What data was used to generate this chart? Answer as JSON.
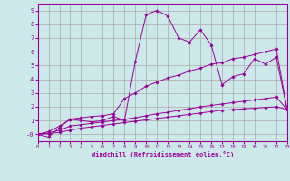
{
  "xlabel": "Windchill (Refroidissement éolien,°C)",
  "bg_color": "#cce8e8",
  "grid_color": "#aaaaaa",
  "line_color": "#990099",
  "xlim": [
    0,
    23
  ],
  "ylim": [
    -0.5,
    9.5
  ],
  "xticks": [
    0,
    1,
    2,
    3,
    4,
    5,
    6,
    7,
    8,
    9,
    10,
    11,
    12,
    13,
    14,
    15,
    16,
    17,
    18,
    19,
    20,
    21,
    22,
    23
  ],
  "yticks": [
    0,
    1,
    2,
    3,
    4,
    5,
    6,
    7,
    8,
    9
  ],
  "ytick_labels": [
    "-0",
    "1",
    "2",
    "3",
    "4",
    "5",
    "6",
    "7",
    "8",
    "9"
  ],
  "series": [
    {
      "x": [
        0,
        1,
        2,
        3,
        4,
        5,
        6,
        7,
        8,
        9,
        10,
        11,
        12,
        13,
        14,
        15,
        16,
        17,
        18,
        19,
        20,
        21,
        22,
        23
      ],
      "y": [
        0,
        -0.2,
        0.5,
        1.1,
        1.0,
        0.9,
        1.0,
        1.3,
        1.0,
        5.3,
        8.7,
        9.0,
        8.6,
        7.0,
        6.7,
        7.6,
        6.5,
        3.6,
        4.2,
        4.4,
        5.5,
        5.1,
        5.6,
        1.8
      ]
    },
    {
      "x": [
        0,
        1,
        2,
        3,
        4,
        5,
        6,
        7,
        8,
        9,
        10,
        11,
        12,
        13,
        14,
        15,
        16,
        17,
        18,
        19,
        20,
        21,
        22,
        23
      ],
      "y": [
        0,
        0.2,
        0.6,
        1.1,
        1.2,
        1.3,
        1.35,
        1.5,
        2.6,
        3.0,
        3.5,
        3.8,
        4.1,
        4.3,
        4.6,
        4.8,
        5.1,
        5.2,
        5.5,
        5.6,
        5.8,
        6.0,
        6.2,
        1.8
      ]
    },
    {
      "x": [
        0,
        1,
        2,
        3,
        4,
        5,
        6,
        7,
        8,
        9,
        10,
        11,
        12,
        13,
        14,
        15,
        16,
        17,
        18,
        19,
        20,
        21,
        22,
        23
      ],
      "y": [
        0,
        0.1,
        0.3,
        0.6,
        0.7,
        0.8,
        0.9,
        1.0,
        1.1,
        1.2,
        1.35,
        1.5,
        1.6,
        1.75,
        1.85,
        2.0,
        2.1,
        2.2,
        2.3,
        2.4,
        2.5,
        2.6,
        2.7,
        1.8
      ]
    },
    {
      "x": [
        0,
        1,
        2,
        3,
        4,
        5,
        6,
        7,
        8,
        9,
        10,
        11,
        12,
        13,
        14,
        15,
        16,
        17,
        18,
        19,
        20,
        21,
        22,
        23
      ],
      "y": [
        0,
        0.05,
        0.15,
        0.3,
        0.45,
        0.55,
        0.65,
        0.75,
        0.85,
        0.95,
        1.05,
        1.15,
        1.25,
        1.35,
        1.45,
        1.55,
        1.65,
        1.75,
        1.8,
        1.85,
        1.9,
        1.95,
        2.0,
        1.8
      ]
    }
  ]
}
